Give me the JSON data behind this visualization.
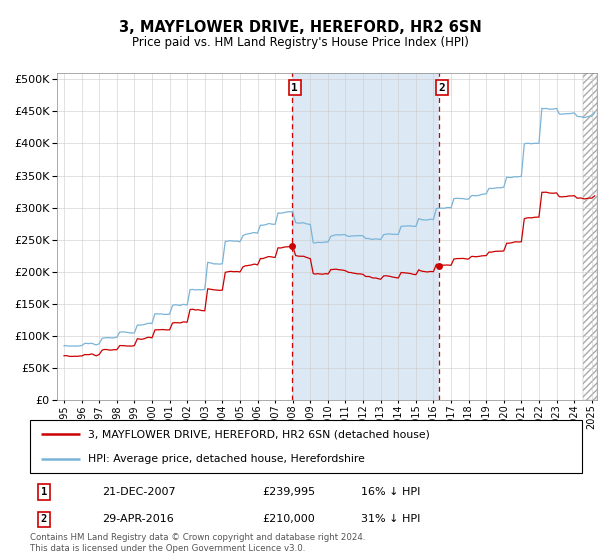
{
  "title": "3, MAYFLOWER DRIVE, HEREFORD, HR2 6SN",
  "subtitle": "Price paid vs. HM Land Registry's House Price Index (HPI)",
  "footer": "Contains HM Land Registry data © Crown copyright and database right 2024.\nThis data is licensed under the Open Government Licence v3.0.",
  "legend_line1": "3, MAYFLOWER DRIVE, HEREFORD, HR2 6SN (detached house)",
  "legend_line2": "HPI: Average price, detached house, Herefordshire",
  "annotation1": {
    "label": "1",
    "date_str": "21-DEC-2007",
    "price_str": "£239,995",
    "pct_str": "16% ↓ HPI",
    "x_year": 2007.97,
    "price": 239995
  },
  "annotation2": {
    "label": "2",
    "date_str": "29-APR-2016",
    "price_str": "£210,000",
    "pct_str": "31% ↓ HPI",
    "x_year": 2016.33,
    "price": 210000
  },
  "hpi_color": "#7ab4d8",
  "price_color": "#cc0000",
  "background_color": "#ffffff",
  "shade_color": "#dce9f5",
  "ylim": [
    0,
    510000
  ],
  "yticks": [
    0,
    50000,
    100000,
    150000,
    200000,
    250000,
    300000,
    350000,
    400000,
    450000,
    500000
  ],
  "xlim_start": 1994.6,
  "xlim_end": 2025.3
}
